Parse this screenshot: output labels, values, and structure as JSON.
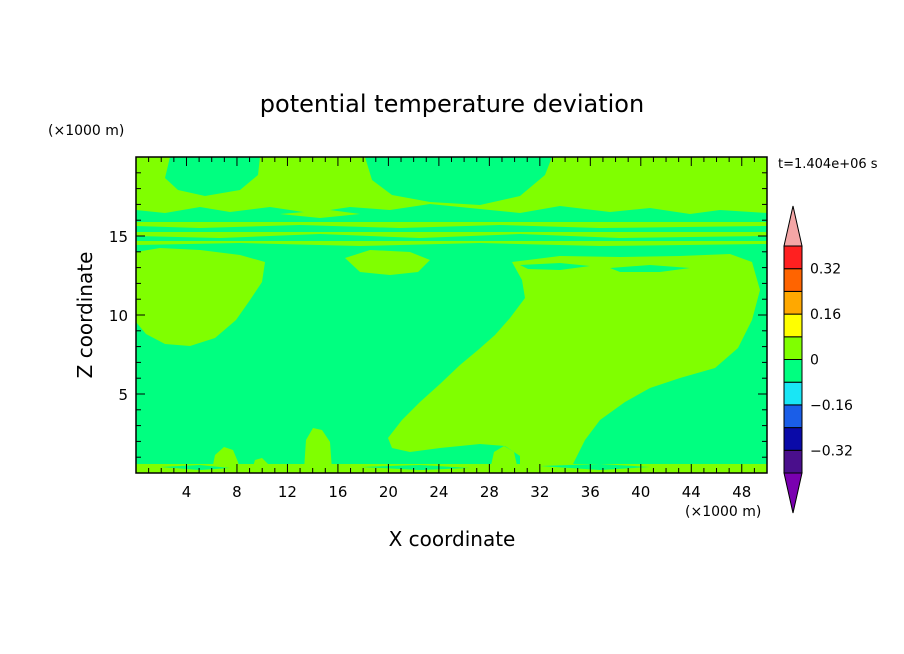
{
  "chart_data": {
    "type": "heatmap",
    "title": "potential temperature deviation",
    "xlabel": "X coordinate",
    "ylabel": "Z coordinate",
    "x_unit": "(×1000 m)",
    "y_unit": "(×1000 m)",
    "time_label": "t=1.404e+06 s",
    "xlim": [
      0,
      50
    ],
    "ylim": [
      0,
      20
    ],
    "x_ticks": [
      4,
      8,
      12,
      16,
      20,
      24,
      28,
      32,
      36,
      40,
      44,
      48
    ],
    "y_ticks": [
      5,
      10,
      15
    ],
    "colorbar": {
      "levels": [
        -0.4,
        -0.32,
        -0.24,
        -0.16,
        -0.08,
        0,
        0.08,
        0.16,
        0.24,
        0.32,
        0.4
      ],
      "colors": [
        "#4a0f8c",
        "#0a0aa8",
        "#1a5ee8",
        "#19e6f5",
        "#00ff80",
        "#80ff00",
        "#ffff00",
        "#ffa800",
        "#ff6400",
        "#ff2020"
      ],
      "under_color": "#7a00b0",
      "over_color": "#f4a6a6",
      "tick_labels": [
        "0.32",
        "0.16",
        "0",
        "−0.16",
        "−0.32"
      ],
      "tick_values": [
        0.32,
        0.16,
        0,
        -0.16,
        -0.32
      ]
    },
    "field_colors": {
      "negative_small": "#00ff80",
      "positive_small": "#80ff00"
    }
  }
}
